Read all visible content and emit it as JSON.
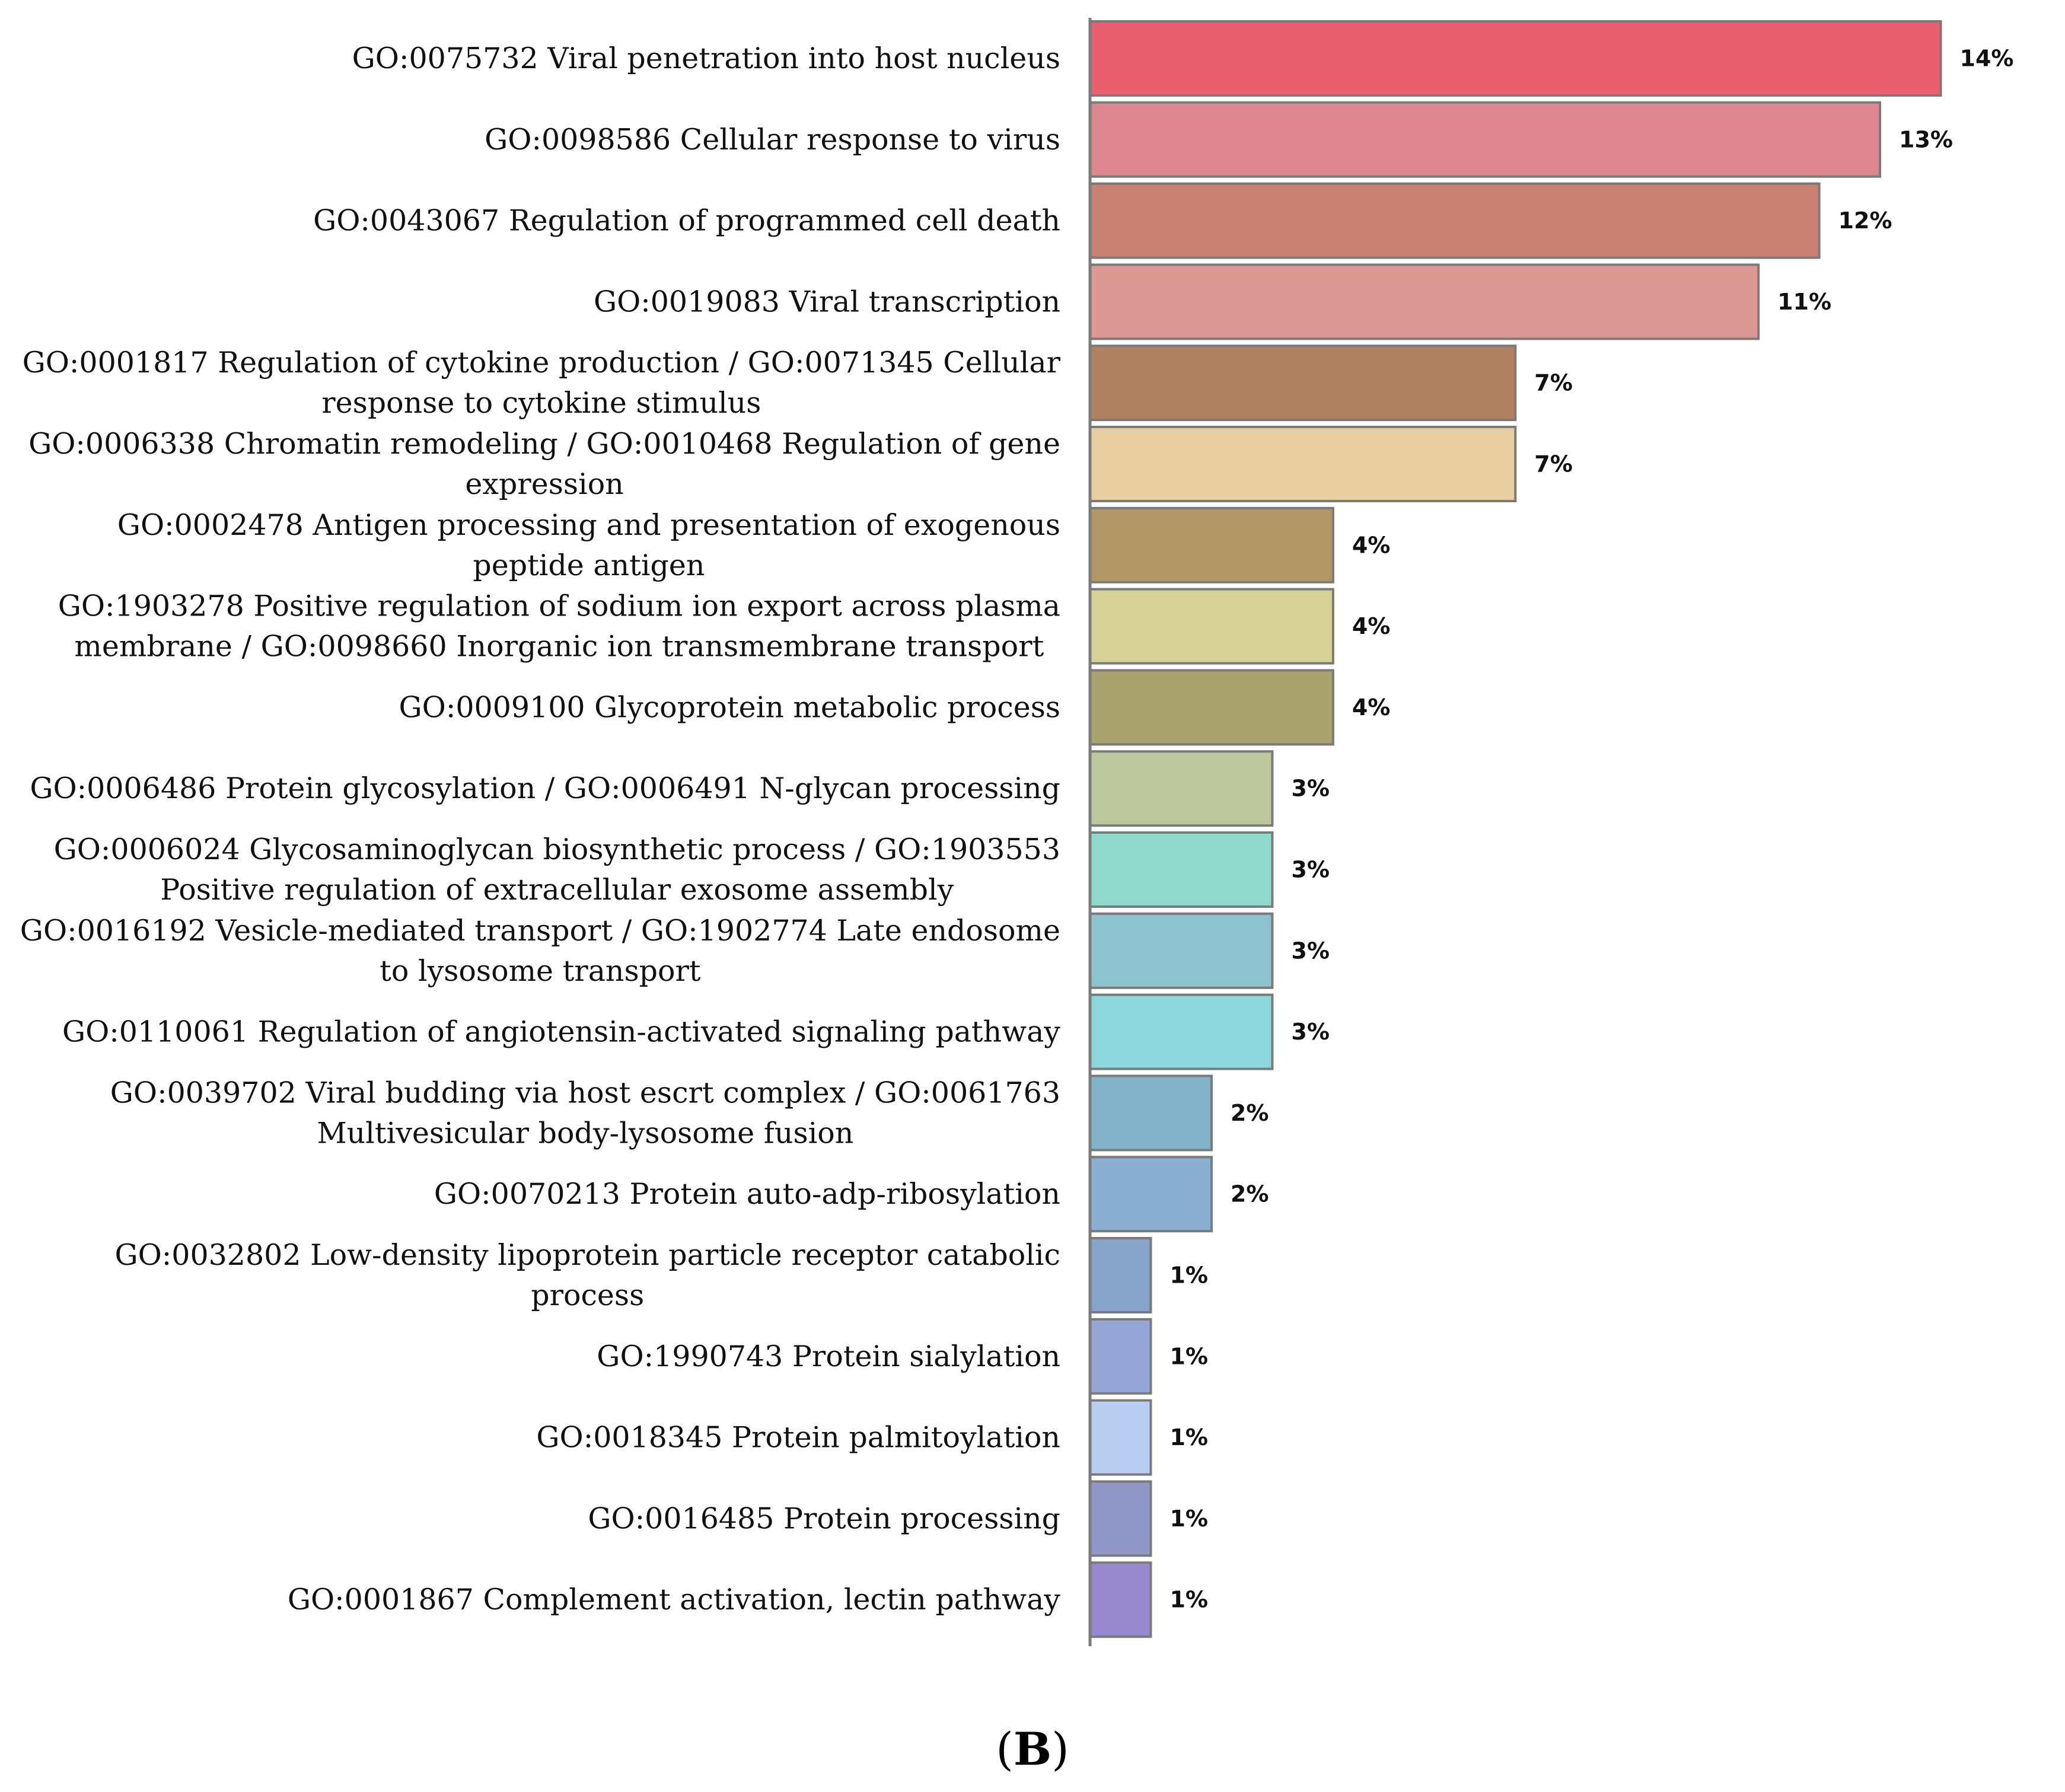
{
  "chart_data": {
    "type": "bar",
    "orientation": "horizontal",
    "categories": [
      [
        "GO:0075732 Viral penetration into host nucleus"
      ],
      [
        "GO:0098586 Cellular response to virus"
      ],
      [
        "GO:0043067 Regulation of programmed cell death"
      ],
      [
        "GO:0019083 Viral transcription"
      ],
      [
        "GO:0001817 Regulation of cytokine production / GO:0071345 Cellular",
        "response to cytokine stimulus"
      ],
      [
        "GO:0006338 Chromatin remodeling / GO:0010468 Regulation of gene",
        "expression"
      ],
      [
        "GO:0002478 Antigen processing and presentation of exogenous",
        "peptide antigen"
      ],
      [
        "GO:1903278 Positive regulation of sodium ion export across plasma",
        "membrane / GO:0098660 Inorganic ion transmembrane transport"
      ],
      [
        "GO:0009100 Glycoprotein metabolic process"
      ],
      [
        "GO:0006486 Protein glycosylation / GO:0006491 N-glycan processing"
      ],
      [
        "GO:0006024 Glycosaminoglycan biosynthetic process / GO:1903553",
        "Positive regulation of extracellular exosome assembly"
      ],
      [
        "GO:0016192 Vesicle-mediated transport / GO:1902774 Late endosome",
        "to lysosome transport"
      ],
      [
        "GO:0110061 Regulation of angiotensin-activated signaling pathway"
      ],
      [
        "GO:0039702 Viral budding via host escrt complex / GO:0061763",
        "Multivesicular body-lysosome fusion"
      ],
      [
        "GO:0070213 Protein auto-adp-ribosylation"
      ],
      [
        "GO:0032802 Low-density lipoprotein particle receptor catabolic",
        "process"
      ],
      [
        "GO:1990743 Protein sialylation"
      ],
      [
        "GO:0018345 Protein palmitoylation"
      ],
      [
        "GO:0016485 Protein processing"
      ],
      [
        "GO:0001867 Complement activation, lectin pathway"
      ]
    ],
    "values": [
      14,
      13,
      12,
      11,
      7,
      7,
      4,
      4,
      4,
      3,
      3,
      3,
      3,
      2,
      2,
      1,
      1,
      1,
      1,
      1
    ],
    "value_labels": [
      "14%",
      "13%",
      "12%",
      "11%",
      "7%",
      "7%",
      "4%",
      "4%",
      "4%",
      "3%",
      "3%",
      "3%",
      "3%",
      "2%",
      "2%",
      "1%",
      "1%",
      "1%",
      "1%",
      "1%"
    ],
    "colors": [
      "#e85f6e",
      "#dd8690",
      "#c98272",
      "#dc9893",
      "#b08262",
      "#e8cda0",
      "#b29866",
      "#d6d195",
      "#a8a26f",
      "#bcc79b",
      "#8fd9cc",
      "#8cc3cf",
      "#8cd7dc",
      "#82b3c8",
      "#8aafd0",
      "#87a3ca",
      "#95a5d5",
      "#b9cdf1",
      "#9198c8",
      "#9889cf"
    ],
    "bar_outline": "#7a7a7a",
    "axis_color": "#7a7a7a",
    "title": "",
    "xlabel": "",
    "ylabel": "",
    "xlim": [
      0,
      14.6
    ],
    "grid": false,
    "legend": "none"
  },
  "panel_label": {
    "open": "(",
    "letter": "B",
    "close": ")"
  }
}
